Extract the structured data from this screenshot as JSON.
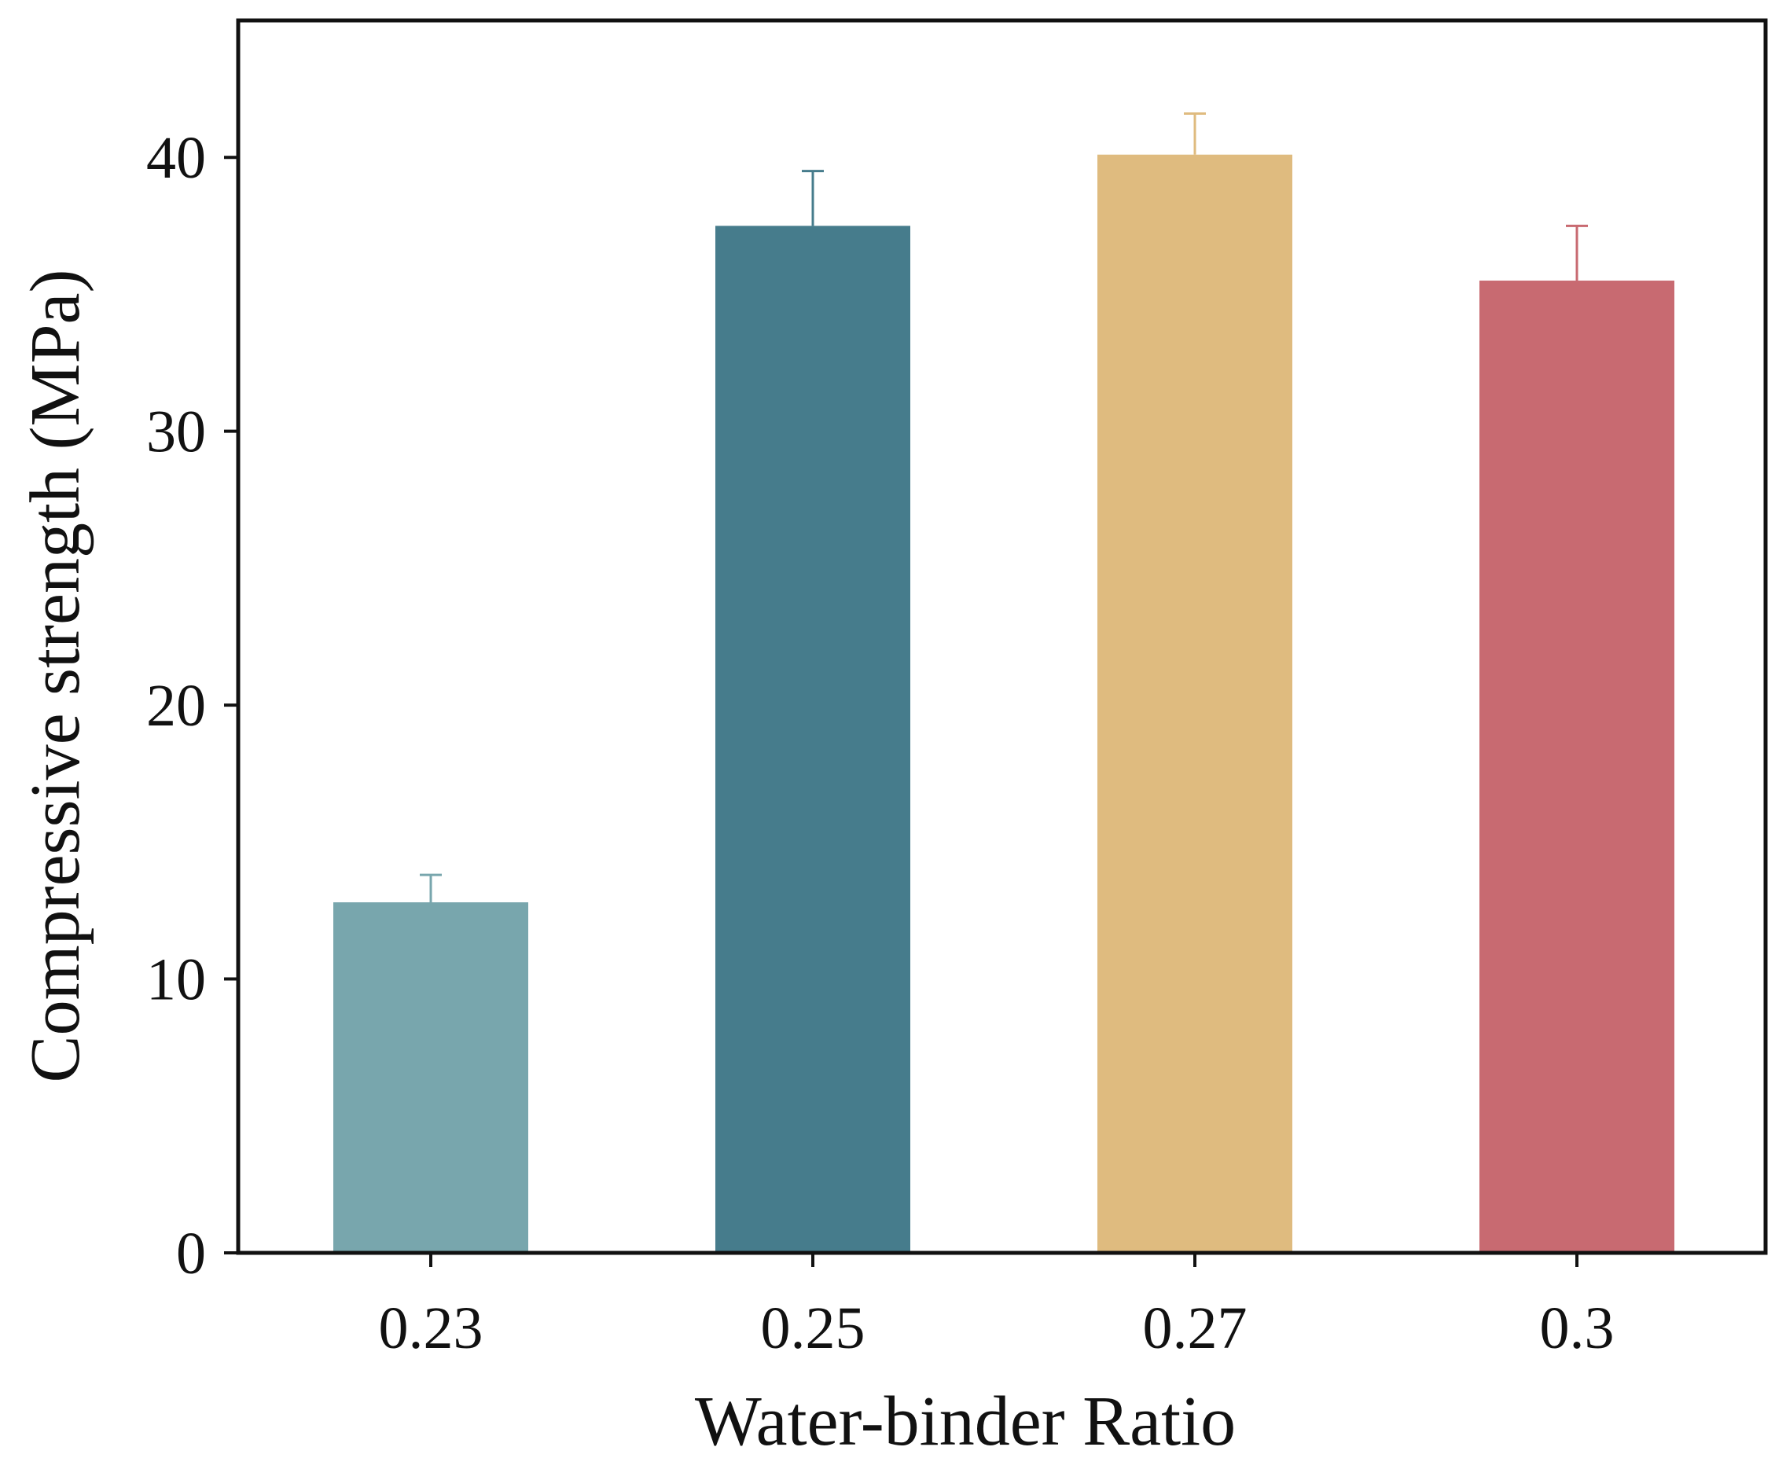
{
  "chart_data": {
    "type": "bar",
    "title": "",
    "xlabel": "Water-binder Ratio",
    "ylabel": "Compressive strength (MPa)",
    "categories": [
      "0.23",
      "0.25",
      "0.27",
      "0.3"
    ],
    "values": [
      12.8,
      37.5,
      40.1,
      35.5
    ],
    "errors": [
      1.0,
      2.0,
      1.5,
      2.0
    ],
    "colors": [
      "#78a6ad",
      "#467c8c",
      "#dfbb7f",
      "#c86a71"
    ],
    "yticks": [
      "0",
      "10",
      "20",
      "30",
      "40"
    ],
    "ylim": [
      0,
      45
    ],
    "grid": false,
    "legend": "none"
  }
}
